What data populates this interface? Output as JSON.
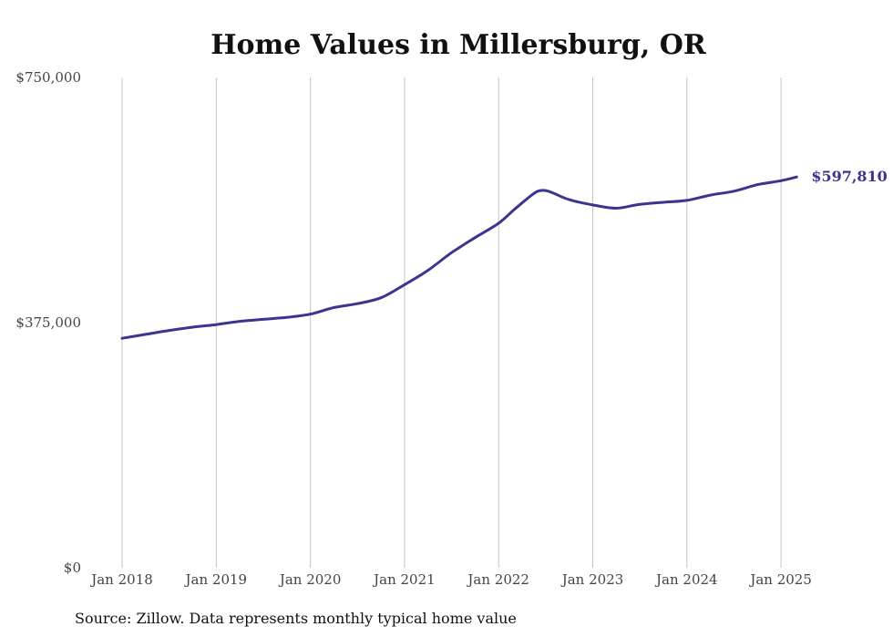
{
  "chart_data": {
    "type": "line",
    "title": "Home Values in Millersburg, OR",
    "source": "Source: Zillow. Data represents monthly typical home value",
    "ylim": [
      0,
      750000
    ],
    "y_ticks": [
      {
        "value": 0,
        "label": "$0"
      },
      {
        "value": 375000,
        "label": "$375,000"
      },
      {
        "value": 750000,
        "label": "$750,000"
      }
    ],
    "x_ticks": [
      "Jan 2018",
      "Jan 2019",
      "Jan 2020",
      "Jan 2021",
      "Jan 2022",
      "Jan 2023",
      "Jan 2024",
      "Jan 2025"
    ],
    "grid": "vertical",
    "line_color": "#3b3590",
    "end_label": "$597,810",
    "series": [
      {
        "points": [
          [
            "2018-01",
            351000
          ],
          [
            "2018-04",
            357000
          ],
          [
            "2018-07",
            363000
          ],
          [
            "2018-10",
            368000
          ],
          [
            "2019-01",
            372000
          ],
          [
            "2019-04",
            377000
          ],
          [
            "2019-07",
            380000
          ],
          [
            "2019-10",
            383000
          ],
          [
            "2020-01",
            388000
          ],
          [
            "2020-04",
            398000
          ],
          [
            "2020-07",
            404000
          ],
          [
            "2020-10",
            413000
          ],
          [
            "2021-01",
            433000
          ],
          [
            "2021-04",
            455000
          ],
          [
            "2021-07",
            482000
          ],
          [
            "2021-10",
            505000
          ],
          [
            "2022-01",
            527000
          ],
          [
            "2022-03",
            548000
          ],
          [
            "2022-05",
            568000
          ],
          [
            "2022-06",
            576000
          ],
          [
            "2022-07",
            577000
          ],
          [
            "2022-08",
            573000
          ],
          [
            "2022-10",
            563000
          ],
          [
            "2023-01",
            555000
          ],
          [
            "2023-04",
            550000
          ],
          [
            "2023-07",
            556000
          ],
          [
            "2023-10",
            559000
          ],
          [
            "2024-01",
            562000
          ],
          [
            "2024-04",
            570000
          ],
          [
            "2024-07",
            576000
          ],
          [
            "2024-10",
            586000
          ],
          [
            "2025-01",
            592000
          ],
          [
            "2025-03",
            597810
          ]
        ]
      }
    ]
  }
}
